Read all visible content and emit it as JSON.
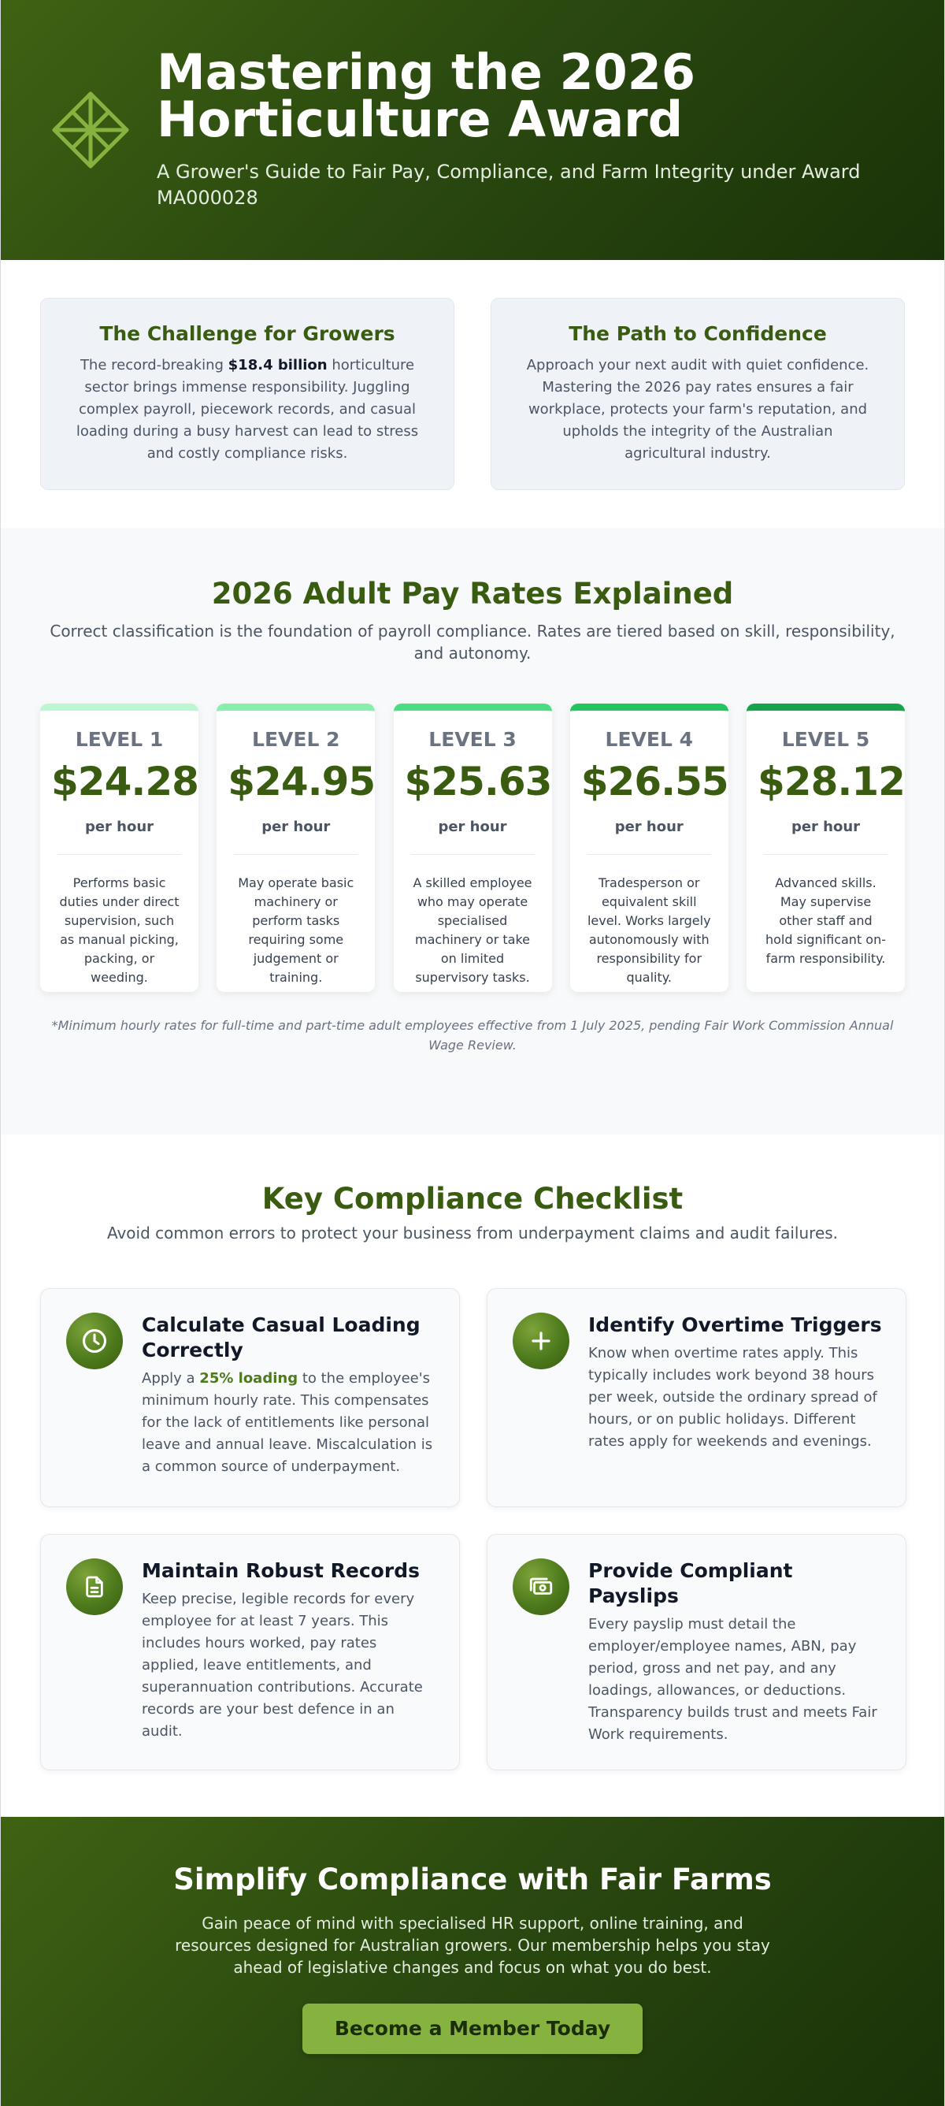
{
  "hero": {
    "title": "Mastering the 2026 Horticulture Award",
    "subtitle": "A Grower's Guide to Fair Pay, Compliance, and Farm Integrity under Award MA000028",
    "logo_icon": "diamond-star-icon",
    "background_color": "#3f6212"
  },
  "intro": {
    "cards": [
      {
        "title": "The Challenge for Growers",
        "body_before": "The record-breaking ",
        "body_bold": "$18.4 billion",
        "body_after": " horticulture sector brings immense responsibility. Juggling complex payroll, piecework records, and casual loading during a busy harvest can lead to stress and costly compliance risks."
      },
      {
        "title": "The Path to Confidence",
        "body": "Approach your next audit with quiet confidence. Mastering the 2026 pay rates ensures a fair workplace, protects your farm's reputation, and upholds the integrity of the Australian agricultural industry."
      }
    ]
  },
  "rates": {
    "title": "2026 Adult Pay Rates Explained",
    "description": "Correct classification is the foundation of payroll compliance. Rates are tiered based on skill, responsibility, and autonomy.",
    "levels": [
      {
        "level": "LEVEL 1",
        "rate": "$24.28",
        "unit": "per hour",
        "description": "Performs basic duties under direct supervision, such as manual picking, packing, or weeding.",
        "accent": "#bbf7d0"
      },
      {
        "level": "LEVEL 2",
        "rate": "$24.95",
        "unit": "per hour",
        "description": "May operate basic machinery or perform tasks requiring some judgement or training.",
        "accent": "#86efac"
      },
      {
        "level": "LEVEL 3",
        "rate": "$25.63",
        "unit": "per hour",
        "description": "A skilled employee who may operate specialised machinery or take on limited supervisory tasks.",
        "accent": "#4ade80"
      },
      {
        "level": "LEVEL 4",
        "rate": "$26.55",
        "unit": "per hour",
        "description": "Tradesperson or equivalent skill level. Works largely autonomously with responsibility for quality.",
        "accent": "#22c55e"
      },
      {
        "level": "LEVEL 5",
        "rate": "$28.12",
        "unit": "per hour",
        "description": "Advanced skills. May supervise other staff and hold significant on-farm responsibility.",
        "accent": "#16a34a"
      }
    ],
    "note": "*Minimum hourly rates for full-time and part-time adult employees effective from 1 July 2025, pending Fair Work Commission Annual Wage Review."
  },
  "checklist": {
    "title": "Key Compliance Checklist",
    "description": "Avoid common errors to protect your business from underpayment claims and audit failures.",
    "items": [
      {
        "icon": "clock-icon",
        "title": "Calculate Casual Loading Correctly",
        "body_before": "Apply a ",
        "body_highlight": "25% loading",
        "body_after": " to the employee's minimum hourly rate. This compensates for the lack of entitlements like personal leave and annual leave. Miscalculation is a common source of underpayment."
      },
      {
        "icon": "plus-icon",
        "title": "Identify Overtime Triggers",
        "body": "Know when overtime rates apply. This typically includes work beyond 38 hours per week, outside the ordinary spread of hours, or on public holidays. Different rates apply for weekends and evenings."
      },
      {
        "icon": "document-icon",
        "title": "Maintain Robust Records",
        "body": "Keep precise, legible records for every employee for at least 7 years. This includes hours worked, pay rates applied, leave entitlements, and superannuation contributions. Accurate records are your best defence in an audit."
      },
      {
        "icon": "money-icon",
        "title": "Provide Compliant Payslips",
        "body": "Every payslip must detail the employer/employee names, ABN, pay period, gross and net pay, and any loadings, allowances, or deductions. Transparency builds trust and meets Fair Work requirements."
      }
    ]
  },
  "cta": {
    "title": "Simplify Compliance with Fair Farms",
    "text": "Gain peace of mind with specialised HR support, online training, and resources designed for Australian growers. Our membership helps you stay ahead of legislative changes and focus on what you do best.",
    "button_label": "Become a Member Today",
    "button_color": "#86b340"
  }
}
